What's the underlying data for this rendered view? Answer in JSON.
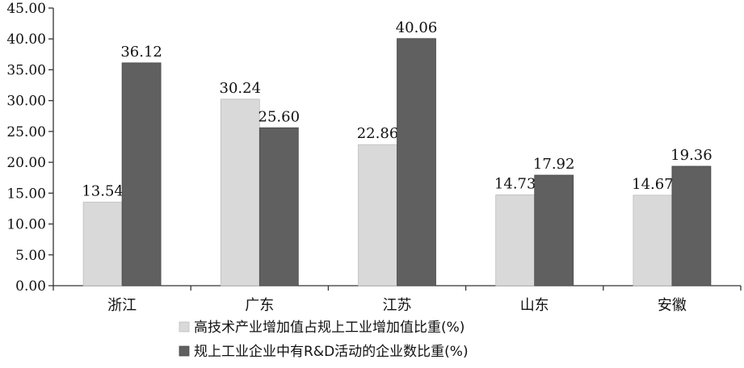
{
  "chart_data": {
    "type": "bar",
    "categories": [
      "浙江",
      "广东",
      "江苏",
      "山东",
      "安徽"
    ],
    "series": [
      {
        "name": "高技术产业增加值占规上工业增加值比重(%)",
        "values": [
          13.54,
          30.24,
          22.86,
          14.73,
          14.67
        ],
        "color": "#d9d9d9",
        "labels": [
          "13.54",
          "30.24",
          "22.86",
          "14.73",
          "14.67"
        ]
      },
      {
        "name": "规上工业企业中有R&D活动的企业数比重(%)",
        "values": [
          36.12,
          25.6,
          40.06,
          17.92,
          19.36
        ],
        "color": "#606060",
        "labels": [
          "36.12",
          "25.60",
          "40.06",
          "17.92",
          "19.36"
        ]
      }
    ],
    "yticks": [
      "0.00",
      "5.00",
      "10.00",
      "15.00",
      "20.00",
      "25.00",
      "30.00",
      "35.00",
      "40.00",
      "45.00"
    ],
    "ylim": [
      0,
      45
    ],
    "title": "",
    "xlabel": "",
    "ylabel": "",
    "legend_position": "bottom-center",
    "grid": false
  }
}
